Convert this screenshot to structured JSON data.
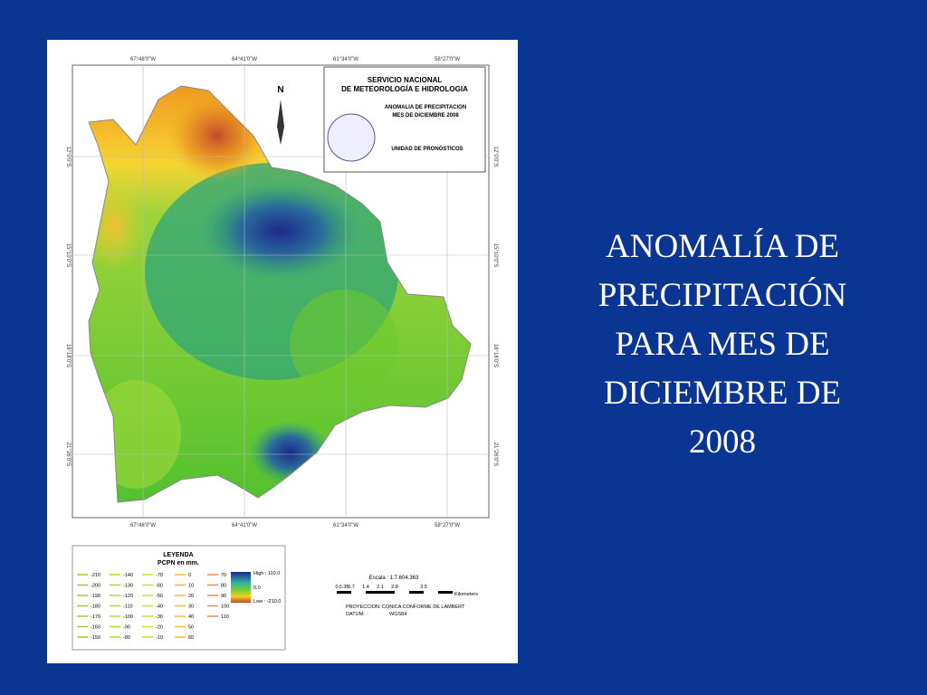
{
  "slide": {
    "title_lines": [
      "ANOMALÍA DE",
      "PRECIPITACIÓN",
      "PARA MES DE",
      "DICIEMBRE DE",
      "2008"
    ]
  },
  "map": {
    "longitudes": [
      "67°48'0\"W",
      "64°41'0\"W",
      "61°34'0\"W",
      "58°27'0\"W"
    ],
    "latitudes": [
      "12°0'0\"S",
      "15°10'0\"S",
      "18°18'0\"S",
      "21°26'0\"S"
    ],
    "north": "N",
    "header": [
      "SERVICIO NACIONAL",
      "DE METEOROLOGÍA E HIDROLOGIA",
      "ANOMALIA DE PRECIPITACION",
      "MES DE DICIEMBRE 2008",
      "UNIDAD DE PRONÓSTICOS"
    ]
  },
  "legend": {
    "title": "LEYENDA",
    "subtitle": "PCPN en mm.",
    "columns": [
      [
        "-210",
        "-200",
        "-190",
        "-180",
        "-170",
        "-160",
        "-150"
      ],
      [
        "-140",
        "-130",
        "-120",
        "-110",
        "-100",
        "-90",
        "-80"
      ],
      [
        "-70",
        "-60",
        "-50",
        "-40",
        "-30",
        "-20",
        "-10"
      ],
      [
        "0",
        "10",
        "20",
        "30",
        "40",
        "50",
        "60"
      ],
      [
        "70",
        "80",
        "90",
        "100",
        "110"
      ]
    ],
    "ramp": [
      "High : 110.0",
      "0.0",
      "Low : -210.0"
    ]
  },
  "scale": {
    "label": "Escala : 1:7.604.363",
    "ticks": [
      "0",
      "0.35",
      "0.7",
      "1.4",
      "2.1",
      "2.8",
      "3.5"
    ],
    "unit": "Kilometers",
    "projection": "PROYECCION: CONICA CONFORME DE LAMBERT",
    "datum_label": "DATUM:",
    "datum": "WGS84"
  }
}
